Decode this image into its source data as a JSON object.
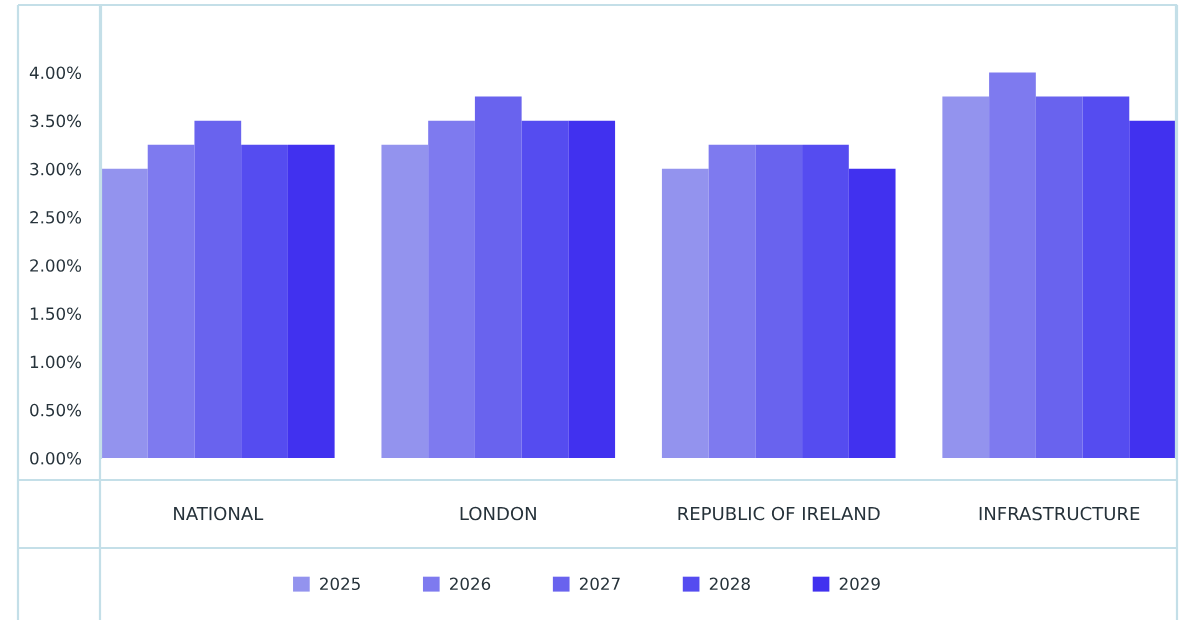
{
  "chart_data": {
    "type": "bar",
    "categories": [
      "NATIONAL",
      "LONDON",
      "REPUBLIC OF IRELAND",
      "INFRASTRUCTURE"
    ],
    "series": [
      {
        "name": "2025",
        "color": "#9393ee",
        "values": [
          3.0,
          3.25,
          3.0,
          3.75
        ]
      },
      {
        "name": "2026",
        "color": "#7e7aef",
        "values": [
          3.25,
          3.5,
          3.25,
          4.0
        ]
      },
      {
        "name": "2027",
        "color": "#6963ee",
        "values": [
          3.5,
          3.75,
          3.25,
          3.75
        ]
      },
      {
        "name": "2028",
        "color": "#554cf0",
        "values": [
          3.25,
          3.5,
          3.25,
          3.75
        ]
      },
      {
        "name": "2029",
        "color": "#4131ef",
        "values": [
          3.25,
          3.5,
          3.0,
          3.5
        ]
      }
    ],
    "ylim": [
      0,
      4.7
    ],
    "yticks": [
      {
        "value": 0,
        "label": "0.00%"
      },
      {
        "value": 0.5,
        "label": "0.50%"
      },
      {
        "value": 1.0,
        "label": "1.00%"
      },
      {
        "value": 1.5,
        "label": "1.50%"
      },
      {
        "value": 2.0,
        "label": "2.00%"
      },
      {
        "value": 2.5,
        "label": "2.50%"
      },
      {
        "value": 3.0,
        "label": "3.00%"
      },
      {
        "value": 3.5,
        "label": "3.50%"
      },
      {
        "value": 4.0,
        "label": "4.00%"
      }
    ],
    "legend": "bottom"
  }
}
